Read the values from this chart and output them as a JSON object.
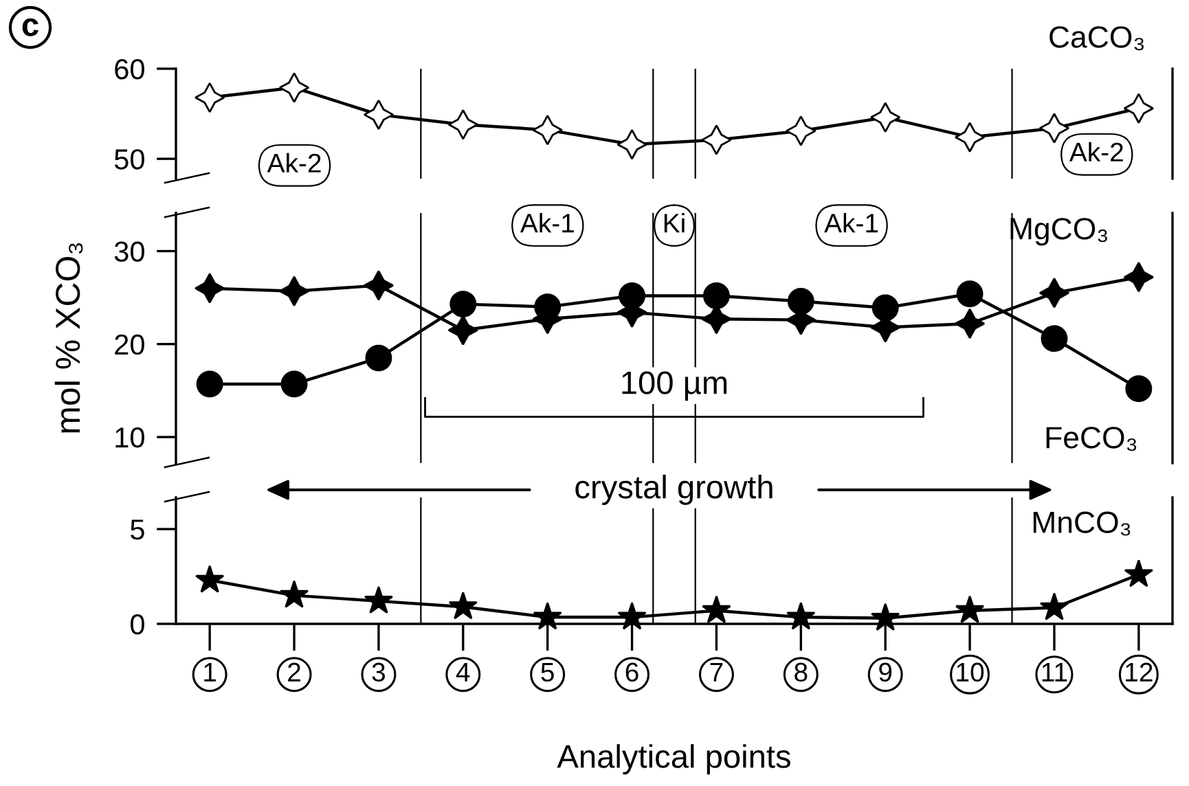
{
  "chart_data": [
    {
      "type": "line",
      "title": "c",
      "x": [
        1,
        2,
        3,
        4,
        5,
        6,
        7,
        8,
        9,
        10,
        11,
        12
      ],
      "xlim": [
        0.6,
        12.4
      ],
      "ylim": [
        47.8,
        60
      ],
      "yticks": [
        50,
        60
      ],
      "tick_labels": "y",
      "grid": false,
      "series": [
        {
          "name": "CaCO₃",
          "color": "#ffffff",
          "marker": "diamond",
          "values": [
            56.8,
            57.9,
            54.9,
            53.8,
            53.2,
            51.6,
            52.1,
            53.1,
            54.6,
            52.4,
            53.4,
            55.6
          ]
        }
      ],
      "ref_lines": [
        {
          "axis": "x",
          "value": 3.5
        },
        {
          "axis": "x",
          "value": 6.25
        },
        {
          "axis": "x",
          "value": 6.75
        },
        {
          "axis": "x",
          "value": 10.5
        }
      ],
      "annotations": [
        "Ak-2",
        "Ak-2"
      ]
    },
    {
      "type": "line",
      "x": [
        1,
        2,
        3,
        4,
        5,
        6,
        7,
        8,
        9,
        10,
        11,
        12
      ],
      "xlim": [
        0.6,
        12.4
      ],
      "ylim": [
        7.2,
        34.1
      ],
      "yticks": [
        10,
        20,
        30
      ],
      "tick_labels": "y",
      "ylabel": "mol % XCO₃",
      "grid": false,
      "series": [
        {
          "name": "MgCO₃",
          "color": "#000000",
          "marker": "diamond",
          "values": [
            26.0,
            25.7,
            26.3,
            21.5,
            22.7,
            23.4,
            22.7,
            22.6,
            21.8,
            22.2,
            25.5,
            27.2
          ]
        },
        {
          "name": "FeCO₃",
          "color": "#000000",
          "marker": "circle",
          "values": [
            15.7,
            15.7,
            18.5,
            24.3,
            24.0,
            25.2,
            25.2,
            24.6,
            23.9,
            25.4,
            20.6,
            15.2
          ]
        }
      ],
      "ref_lines": [
        {
          "axis": "x",
          "value": 3.5
        },
        {
          "axis": "x",
          "value": 6.25
        },
        {
          "axis": "x",
          "value": 6.75
        },
        {
          "axis": "x",
          "value": 10.5
        }
      ],
      "annotations": [
        "Ak-1",
        "Ki",
        "Ak-1",
        "100 µm"
      ]
    },
    {
      "type": "line",
      "x": [
        1,
        2,
        3,
        4,
        5,
        6,
        7,
        8,
        9,
        10,
        11,
        12
      ],
      "xlim": [
        0.6,
        12.4
      ],
      "xticks": [
        1,
        2,
        3,
        4,
        5,
        6,
        7,
        8,
        9,
        10,
        11,
        12
      ],
      "ylim": [
        0,
        6.67
      ],
      "yticks": [
        0,
        5
      ],
      "xlabel": "Analytical points",
      "grid": false,
      "series": [
        {
          "name": "MnCO₃",
          "color": "#000000",
          "marker": "star",
          "values": [
            2.3,
            1.5,
            1.2,
            0.9,
            0.35,
            0.35,
            0.7,
            0.35,
            0.3,
            0.7,
            0.85,
            2.6
          ]
        }
      ],
      "ref_lines": [
        {
          "axis": "x",
          "value": 3.5
        },
        {
          "axis": "x",
          "value": 6.25
        },
        {
          "axis": "x",
          "value": 6.75
        },
        {
          "axis": "x",
          "value": 10.5
        }
      ],
      "annotations": [
        "crystal growth"
      ]
    }
  ]
}
